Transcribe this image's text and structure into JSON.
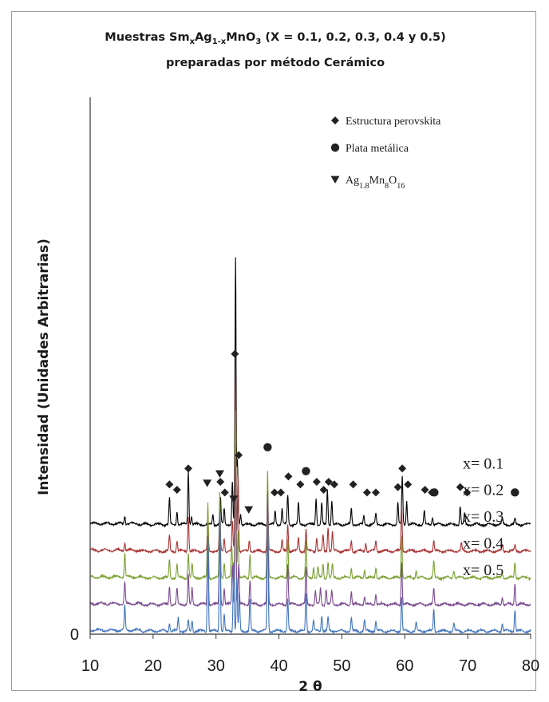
{
  "title": {
    "line1_pre": "Muestras Sm",
    "line1_sub1": "x",
    "line1_mid": "Ag",
    "line1_sub2": "1-x",
    "line1_mid2": "MnO",
    "line1_sub3": "3",
    "line1_post": " (X = 0.1, 0.2, 0.3, 0.4 y 0.5)",
    "line2": "preparadas por método Cerámico"
  },
  "chart_data": {
    "type": "line",
    "xlabel": "2 θ",
    "ylabel": "Intensidad (Unidades Arbitrarias)",
    "xlim": [
      10,
      80
    ],
    "x_ticks": [
      "10",
      "20",
      "30",
      "40",
      "50",
      "60",
      "70",
      "80"
    ],
    "y_ticks": [
      "0"
    ],
    "grid": false,
    "legend": {
      "placement": "top-right",
      "entries": [
        {
          "marker": "diamond",
          "label": "Estructura perovskita"
        },
        {
          "marker": "circle",
          "label": "Plata metálica"
        },
        {
          "marker": "triangle-down",
          "label_main": "Ag",
          "label_sub1": "1.8",
          "label_mid": "Mn",
          "label_sub2": "8",
          "label_end": "O",
          "label_sub3": "16"
        }
      ]
    },
    "series": [
      {
        "name": "x= 0.1",
        "color": "#000000",
        "baseline": 4.0,
        "peaks": [
          [
            15.5,
            0.3
          ],
          [
            22.6,
            1.0
          ],
          [
            23.8,
            0.5
          ],
          [
            25.6,
            2.0
          ],
          [
            26.1,
            0.3
          ],
          [
            29.5,
            0.4
          ],
          [
            30.7,
            1.0
          ],
          [
            31.3,
            0.6
          ],
          [
            32.6,
            1.6
          ],
          [
            33.1,
            10.0
          ],
          [
            33.4,
            2.4
          ],
          [
            33.9,
            0.4
          ],
          [
            38.2,
            0.2
          ],
          [
            39.4,
            0.5
          ],
          [
            40.5,
            0.6
          ],
          [
            41.4,
            1.1
          ],
          [
            43.1,
            0.8
          ],
          [
            45.9,
            1.0
          ],
          [
            46.8,
            0.8
          ],
          [
            47.7,
            1.3
          ],
          [
            48.4,
            0.9
          ],
          [
            51.5,
            0.6
          ],
          [
            53.5,
            0.3
          ],
          [
            55.4,
            0.4
          ],
          [
            58.9,
            0.8
          ],
          [
            59.6,
            1.8
          ],
          [
            60.3,
            0.9
          ],
          [
            63.1,
            0.5
          ],
          [
            64.4,
            0.3
          ],
          [
            68.8,
            0.7
          ],
          [
            69.5,
            0.4
          ],
          [
            75.5,
            0.2
          ],
          [
            77.5,
            0.2
          ]
        ]
      },
      {
        "name": "x= 0.2",
        "color": "#a83232",
        "baseline": 3.0,
        "peaks": [
          [
            15.5,
            0.3
          ],
          [
            22.6,
            0.6
          ],
          [
            23.8,
            0.4
          ],
          [
            25.6,
            1.3
          ],
          [
            28.7,
            1.2
          ],
          [
            30.6,
            1.7
          ],
          [
            31.3,
            0.5
          ],
          [
            32.6,
            1.1
          ],
          [
            33.1,
            6.5
          ],
          [
            33.5,
            2.8
          ],
          [
            35.3,
            0.4
          ],
          [
            38.2,
            2.2
          ],
          [
            40.5,
            0.4
          ],
          [
            41.4,
            1.0
          ],
          [
            43.1,
            0.5
          ],
          [
            44.3,
            0.8
          ],
          [
            46.0,
            0.5
          ],
          [
            47.0,
            0.6
          ],
          [
            47.8,
            0.9
          ],
          [
            48.5,
            0.7
          ],
          [
            51.5,
            0.4
          ],
          [
            53.8,
            0.3
          ],
          [
            55.4,
            0.4
          ],
          [
            59.5,
            1.6
          ],
          [
            64.6,
            0.4
          ],
          [
            69.0,
            0.3
          ],
          [
            75.5,
            0.2
          ],
          [
            77.5,
            0.2
          ]
        ]
      },
      {
        "name": "x= 0.3",
        "color": "#7aa030",
        "baseline": 2.0,
        "peaks": [
          [
            15.5,
            0.9
          ],
          [
            22.6,
            0.7
          ],
          [
            23.8,
            0.5
          ],
          [
            25.6,
            0.9
          ],
          [
            26.2,
            0.5
          ],
          [
            28.7,
            2.8
          ],
          [
            30.6,
            3.2
          ],
          [
            31.3,
            0.6
          ],
          [
            32.5,
            1.2
          ],
          [
            33.1,
            6.3
          ],
          [
            33.5,
            1.8
          ],
          [
            35.4,
            0.9
          ],
          [
            38.2,
            4.0
          ],
          [
            41.4,
            1.5
          ],
          [
            44.3,
            1.4
          ],
          [
            45.5,
            0.4
          ],
          [
            46.2,
            0.4
          ],
          [
            47.0,
            0.5
          ],
          [
            47.8,
            0.6
          ],
          [
            48.5,
            0.5
          ],
          [
            51.5,
            0.4
          ],
          [
            53.6,
            0.3
          ],
          [
            55.4,
            0.4
          ],
          [
            59.5,
            1.6
          ],
          [
            61.8,
            0.3
          ],
          [
            64.6,
            0.6
          ],
          [
            67.8,
            0.3
          ],
          [
            75.5,
            0.2
          ],
          [
            77.5,
            0.6
          ]
        ]
      },
      {
        "name": "x= 0.4",
        "color": "#7a4a90",
        "baseline": 1.0,
        "peaks": [
          [
            15.5,
            0.8
          ],
          [
            22.6,
            0.7
          ],
          [
            23.8,
            0.6
          ],
          [
            25.6,
            1.1
          ],
          [
            26.2,
            0.6
          ],
          [
            28.7,
            2.6
          ],
          [
            30.6,
            3.6
          ],
          [
            31.3,
            0.6
          ],
          [
            32.6,
            1.5
          ],
          [
            33.1,
            5.6
          ],
          [
            33.6,
            1.5
          ],
          [
            35.4,
            0.9
          ],
          [
            38.2,
            4.2
          ],
          [
            41.4,
            1.5
          ],
          [
            44.3,
            1.4
          ],
          [
            45.8,
            0.5
          ],
          [
            46.6,
            0.6
          ],
          [
            47.5,
            0.6
          ],
          [
            48.4,
            0.5
          ],
          [
            51.5,
            0.5
          ],
          [
            53.6,
            0.3
          ],
          [
            55.4,
            0.4
          ],
          [
            59.5,
            1.6
          ],
          [
            64.6,
            0.6
          ],
          [
            75.5,
            0.3
          ],
          [
            77.5,
            0.8
          ]
        ]
      },
      {
        "name": "x= 0.5",
        "color": "#3f73bf",
        "baseline": 0.0,
        "peaks": [
          [
            15.5,
            0.9
          ],
          [
            22.6,
            0.3
          ],
          [
            24.0,
            0.5
          ],
          [
            25.6,
            0.4
          ],
          [
            26.2,
            0.4
          ],
          [
            28.7,
            3.5
          ],
          [
            30.6,
            4.6
          ],
          [
            31.3,
            0.6
          ],
          [
            32.8,
            2.6
          ],
          [
            33.3,
            2.0
          ],
          [
            33.7,
            1.4
          ],
          [
            35.4,
            1.2
          ],
          [
            38.2,
            4.0
          ],
          [
            41.4,
            1.2
          ],
          [
            44.3,
            1.4
          ],
          [
            45.5,
            0.4
          ],
          [
            46.8,
            0.6
          ],
          [
            47.8,
            0.5
          ],
          [
            51.5,
            0.5
          ],
          [
            53.6,
            0.4
          ],
          [
            55.4,
            0.4
          ],
          [
            59.5,
            1.3
          ],
          [
            61.8,
            0.3
          ],
          [
            64.6,
            0.8
          ],
          [
            67.8,
            0.3
          ],
          [
            75.5,
            0.3
          ],
          [
            77.5,
            0.8
          ]
        ]
      }
    ],
    "markers": {
      "diamond": [
        [
          33.0,
          10.4
        ],
        [
          22.6,
          5.5
        ],
        [
          23.8,
          5.3
        ],
        [
          25.6,
          6.1
        ],
        [
          30.7,
          5.6
        ],
        [
          31.4,
          5.2
        ],
        [
          33.6,
          6.6
        ],
        [
          39.3,
          5.2
        ],
        [
          40.3,
          5.2
        ],
        [
          41.5,
          5.8
        ],
        [
          43.4,
          5.5
        ],
        [
          46.0,
          5.6
        ],
        [
          47.1,
          5.3
        ],
        [
          47.9,
          5.6
        ],
        [
          48.8,
          5.5
        ],
        [
          51.8,
          5.5
        ],
        [
          54.0,
          5.2
        ],
        [
          55.4,
          5.2
        ],
        [
          58.9,
          5.4
        ],
        [
          59.6,
          6.1
        ],
        [
          60.5,
          5.5
        ],
        [
          63.2,
          5.3
        ],
        [
          64.3,
          5.2
        ],
        [
          68.8,
          5.4
        ],
        [
          69.9,
          5.2
        ]
      ],
      "circle": [
        [
          38.2,
          6.9
        ],
        [
          44.3,
          6.0
        ],
        [
          64.7,
          5.2
        ],
        [
          77.5,
          5.2
        ]
      ],
      "triangle-down": [
        [
          28.6,
          5.55
        ],
        [
          30.6,
          5.9
        ],
        [
          32.8,
          4.95
        ],
        [
          35.2,
          4.55
        ]
      ]
    }
  }
}
